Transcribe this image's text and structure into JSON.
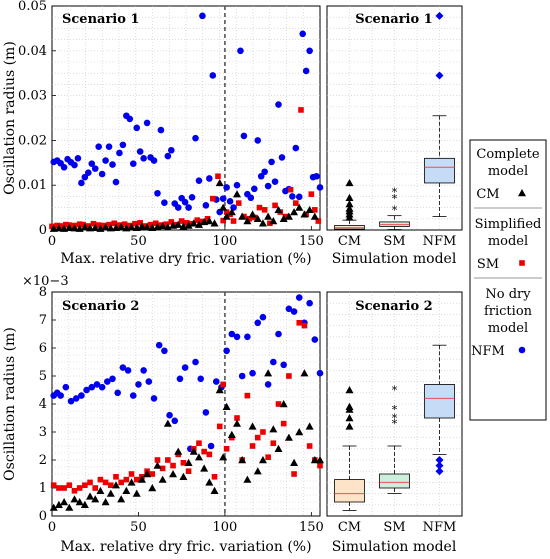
{
  "chart_data": [
    {
      "type": "scatter",
      "title": "Scenario 1",
      "xlabel": "Max. relative dry fric. variation (%)",
      "ylabel": "Oscillation radius (m)",
      "xlim": [
        0,
        155
      ],
      "ylim": [
        0,
        0.05
      ],
      "xticks": [
        "0",
        "50",
        "100",
        "150"
      ],
      "yticks": [
        "0",
        "0.01",
        "0.02",
        "0.03",
        "0.04",
        "0.05"
      ],
      "grid": true,
      "reference_line_x": 100,
      "series": [
        {
          "name": "NFM",
          "color": "#0000ee",
          "marker": "circle",
          "x": [
            1,
            3,
            5,
            7,
            9,
            11,
            13,
            15,
            17,
            19,
            21,
            23,
            25,
            27,
            29,
            31,
            33,
            35,
            37,
            39,
            41,
            43,
            45,
            47,
            49,
            51,
            53,
            55,
            57,
            59,
            61,
            63,
            65,
            67,
            69,
            71,
            73,
            75,
            77,
            79,
            81,
            83,
            85,
            87,
            89,
            91,
            93,
            95,
            97,
            99,
            101,
            103,
            105,
            107,
            109,
            111,
            113,
            115,
            117,
            119,
            121,
            123,
            125,
            127,
            129,
            131,
            133,
            135,
            137,
            139,
            141,
            143,
            145,
            147,
            149,
            151,
            153,
            155
          ],
          "y": [
            0.0152,
            0.0155,
            0.0149,
            0.014,
            0.0158,
            0.0151,
            0.0145,
            0.016,
            0.0105,
            0.0118,
            0.0128,
            0.0148,
            0.0137,
            0.0186,
            0.0125,
            0.0155,
            0.0186,
            0.0146,
            0.0107,
            0.0172,
            0.019,
            0.0255,
            0.0248,
            0.0148,
            0.0228,
            0.0175,
            0.016,
            0.0239,
            0.0162,
            0.0155,
            0.0082,
            0.0223,
            0.0061,
            0.0165,
            0.0178,
            0.0059,
            0.005,
            0.0071,
            0.0062,
            0.005,
            0.0073,
            0.0205,
            0.011,
            0.0478,
            0.0055,
            0.0115,
            0.0345,
            0.0068,
            0.004,
            0.007,
            0.0095,
            0.0064,
            0.005,
            0.01,
            0.04,
            0.021,
            0.008,
            0.0072,
            0.0092,
            0.02,
            0.012,
            0.013,
            0.0098,
            0.0152,
            0.0108,
            0.028,
            0.0162,
            0.0087,
            0.0091,
            0.0075,
            0.0183,
            0.0074,
            0.0438,
            0.0355,
            0.04,
            0.0118,
            0.012,
            0.0095
          ]
        },
        {
          "name": "SM",
          "color": "#ee0000",
          "marker": "square",
          "x": [
            0,
            3,
            5,
            8,
            10,
            13,
            16,
            18,
            21,
            24,
            27,
            30,
            33,
            36,
            39,
            42,
            45,
            48,
            51,
            54,
            57,
            60,
            63,
            66,
            69,
            72,
            75,
            78,
            81,
            84,
            87,
            90,
            93,
            96,
            99,
            101,
            103,
            105,
            108,
            111,
            114,
            117,
            120,
            123,
            126,
            129,
            132,
            135,
            138,
            141,
            144,
            147,
            150,
            152,
            154
          ],
          "y": [
            0.0008,
            0.001,
            0.0009,
            0.0012,
            0.0011,
            0.001,
            0.0013,
            0.0012,
            0.0009,
            0.0014,
            0.0011,
            0.001,
            0.0012,
            0.0015,
            0.0011,
            0.0013,
            0.001,
            0.0014,
            0.0016,
            0.0009,
            0.0012,
            0.0015,
            0.0011,
            0.0013,
            0.0018,
            0.0012,
            0.002,
            0.0016,
            0.0014,
            0.0022,
            0.0019,
            0.0025,
            0.007,
            0.012,
            0.0021,
            0.004,
            0.0035,
            0.002,
            0.006,
            0.003,
            0.0025,
            0.0028,
            0.005,
            0.0045,
            0.0015,
            0.0055,
            0.004,
            0.003,
            0.009,
            0.006,
            0.0268,
            0.0035,
            0.008,
            0.0045,
            0.002
          ]
        },
        {
          "name": "CM",
          "color": "#000000",
          "marker": "triangle",
          "x": [
            1,
            4,
            7,
            10,
            13,
            16,
            19,
            22,
            25,
            28,
            31,
            34,
            37,
            40,
            43,
            46,
            49,
            52,
            55,
            58,
            61,
            64,
            67,
            70,
            73,
            76,
            79,
            82,
            85,
            88,
            91,
            94,
            97,
            99,
            101,
            104,
            107,
            110,
            113,
            116,
            119,
            122,
            125,
            128,
            131,
            134,
            137,
            140,
            143,
            146,
            149,
            152
          ],
          "y": [
            0.0003,
            0.0004,
            0.0003,
            0.0005,
            0.0004,
            0.0003,
            0.0006,
            0.0004,
            0.0005,
            0.0003,
            0.0006,
            0.0004,
            0.0005,
            0.0007,
            0.0004,
            0.0006,
            0.0005,
            0.0008,
            0.0006,
            0.0005,
            0.0007,
            0.0009,
            0.0006,
            0.001,
            0.0012,
            0.0008,
            0.001,
            0.0015,
            0.0012,
            0.0018,
            0.002,
            0.0015,
            0.0105,
            0.005,
            0.003,
            0.004,
            0.008,
            0.003,
            0.002,
            0.0035,
            0.0025,
            0.0015,
            0.003,
            0.002,
            0.0045,
            0.0025,
            0.003,
            0.004,
            0.005,
            0.0035,
            0.0045,
            0.003
          ]
        }
      ]
    },
    {
      "type": "box",
      "title": "Scenario 1",
      "xlabel": "Simulation model",
      "categories": [
        "CM",
        "SM",
        "NFM"
      ],
      "ylim": [
        0,
        0.05
      ],
      "boxes": [
        {
          "name": "CM",
          "fill": "#fde3c8",
          "whisker_low": 0.0,
          "q1": 0.0002,
          "median": 0.0005,
          "q3": 0.001,
          "whisker_high": 0.0022,
          "outliers": [
            0.0028,
            0.0035,
            0.0042,
            0.0048,
            0.0058,
            0.0072,
            0.0105
          ]
        },
        {
          "name": "SM",
          "fill": "#cdeedb",
          "whisker_low": 0.0001,
          "q1": 0.0008,
          "median": 0.0012,
          "q3": 0.0018,
          "whisker_high": 0.0032,
          "outliers": [
            0.0045,
            0.007,
            0.0085
          ]
        },
        {
          "name": "NFM",
          "fill": "#c6dcf6",
          "whisker_low": 0.003,
          "q1": 0.0105,
          "median": 0.014,
          "q3": 0.016,
          "whisker_high": 0.0255,
          "outliers": [
            0.0345,
            0.0478
          ]
        }
      ]
    },
    {
      "type": "scatter",
      "title": "Scenario 2",
      "xlabel": "Max. relative dry fric. variation (%)",
      "ylabel": "Oscillation radius (m)",
      "y_multiplier": "×10−3",
      "xlim": [
        0,
        155
      ],
      "ylim": [
        0,
        8
      ],
      "xticks": [
        "0",
        "50",
        "100",
        "150"
      ],
      "yticks": [
        "0",
        "1",
        "2",
        "3",
        "4",
        "5",
        "6",
        "7",
        "8"
      ],
      "grid": true,
      "reference_line_x": 100,
      "series": [
        {
          "name": "NFM",
          "color": "#0000ee",
          "marker": "circle",
          "x": [
            1,
            3,
            5,
            8,
            11,
            14,
            17,
            20,
            23,
            26,
            29,
            32,
            35,
            38,
            41,
            44,
            47,
            50,
            53,
            56,
            59,
            62,
            65,
            68,
            71,
            74,
            77,
            80,
            83,
            86,
            89,
            92,
            95,
            98,
            101,
            104,
            107,
            110,
            113,
            116,
            119,
            122,
            125,
            128,
            131,
            134,
            137,
            140,
            143,
            146,
            149,
            152,
            155
          ],
          "y": [
            4.3,
            4.4,
            4.3,
            4.6,
            4.1,
            4.2,
            4.3,
            4.5,
            4.6,
            4.7,
            4.6,
            4.8,
            4.9,
            4.4,
            5.3,
            5.2,
            4.3,
            4.7,
            5.2,
            4.8,
            4.2,
            6.1,
            5.9,
            3.6,
            3.4,
            4.9,
            5.3,
            2.4,
            5.5,
            4.9,
            3.7,
            2.5,
            4.8,
            4.6,
            5.9,
            6.5,
            6.4,
            5.0,
            6.4,
            5.1,
            6.9,
            7.1,
            4.7,
            5.5,
            6.5,
            5.4,
            7.4,
            7.3,
            7.8,
            6.9,
            7.6,
            6.3,
            5.1
          ]
        },
        {
          "name": "SM",
          "color": "#ee0000",
          "marker": "square",
          "x": [
            1,
            4,
            7,
            10,
            13,
            16,
            19,
            22,
            25,
            28,
            31,
            34,
            37,
            40,
            43,
            46,
            49,
            52,
            55,
            58,
            61,
            64,
            67,
            70,
            73,
            76,
            79,
            82,
            85,
            88,
            91,
            94,
            97,
            99,
            101,
            104,
            107,
            110,
            113,
            116,
            119,
            122,
            125,
            128,
            131,
            134,
            137,
            140,
            143,
            146,
            149,
            152,
            155
          ],
          "y": [
            1.1,
            1.0,
            1.0,
            1.1,
            0.9,
            1.0,
            1.1,
            1.2,
            1.0,
            1.3,
            1.2,
            1.1,
            1.4,
            1.2,
            1.3,
            1.5,
            1.3,
            1.4,
            1.6,
            1.5,
            2.0,
            1.7,
            2.0,
            1.8,
            2.2,
            1.9,
            1.6,
            2.4,
            2.6,
            2.3,
            2.2,
            1.4,
            3.2,
            4.7,
            2.4,
            2.8,
            3.5,
            2.0,
            4.3,
            2.5,
            2.8,
            3.0,
            2.1,
            2.6,
            4.0,
            3.3,
            5.0,
            1.5,
            6.9,
            6.8,
            2.5,
            2.0,
            1.8
          ]
        },
        {
          "name": "CM",
          "color": "#000000",
          "marker": "triangle",
          "x": [
            1,
            4,
            7,
            10,
            13,
            16,
            19,
            22,
            25,
            28,
            31,
            34,
            37,
            40,
            43,
            46,
            49,
            52,
            55,
            58,
            61,
            64,
            67,
            70,
            73,
            76,
            79,
            82,
            85,
            88,
            91,
            94,
            97,
            99,
            101,
            104,
            107,
            110,
            113,
            116,
            119,
            122,
            125,
            128,
            131,
            134,
            137,
            140,
            143,
            146,
            149,
            152,
            155
          ],
          "y": [
            0.3,
            0.4,
            0.5,
            0.3,
            0.6,
            0.5,
            0.4,
            0.7,
            0.6,
            0.9,
            0.5,
            0.8,
            1.1,
            0.6,
            0.9,
            1.2,
            0.8,
            1.3,
            1.5,
            1.0,
            1.8,
            1.3,
            3.3,
            1.5,
            2.3,
            1.4,
            1.9,
            2.3,
            2.1,
            1.7,
            1.2,
            0.9,
            4.5,
            2.1,
            3.9,
            2.9,
            3.3,
            2.0,
            1.3,
            3.2,
            1.6,
            2.0,
            5.1,
            3.1,
            2.4,
            4.0,
            2.8,
            1.9,
            3.0,
            5.1,
            3.2,
            2.0,
            2.0
          ]
        }
      ]
    },
    {
      "type": "box",
      "title": "Scenario 2",
      "xlabel": "Simulation model",
      "categories": [
        "CM",
        "SM",
        "NFM"
      ],
      "ylim": [
        0,
        8
      ],
      "boxes": [
        {
          "name": "CM",
          "fill": "#fde3c8",
          "whisker_low": 0.2,
          "q1": 0.5,
          "median": 0.8,
          "q3": 1.3,
          "whisker_high": 2.5,
          "outliers": [
            3.2,
            3.5,
            3.8,
            3.9,
            4.5
          ]
        },
        {
          "name": "SM",
          "fill": "#cdeedb",
          "whisker_low": 0.8,
          "q1": 1.0,
          "median": 1.2,
          "q3": 1.5,
          "whisker_high": 2.5,
          "outliers": [
            3.3,
            3.5,
            3.8,
            4.5
          ]
        },
        {
          "name": "NFM",
          "fill": "#c6dcf6",
          "whisker_low": 2.2,
          "q1": 3.5,
          "median": 4.2,
          "q3": 4.7,
          "whisker_high": 6.1,
          "outliers": [
            1.6,
            1.8,
            2.0
          ]
        }
      ]
    }
  ],
  "legend": {
    "groups": [
      {
        "title_lines": [
          "Complete",
          "model"
        ],
        "label": "CM",
        "marker": "triangle",
        "color": "#000000"
      },
      {
        "title_lines": [
          "Simplified",
          "model"
        ],
        "label": "SM",
        "marker": "square",
        "color": "#ee0000"
      },
      {
        "title_lines": [
          "No dry",
          "friction",
          "model"
        ],
        "label": "NFM",
        "marker": "circle",
        "color": "#0000ee"
      }
    ]
  }
}
